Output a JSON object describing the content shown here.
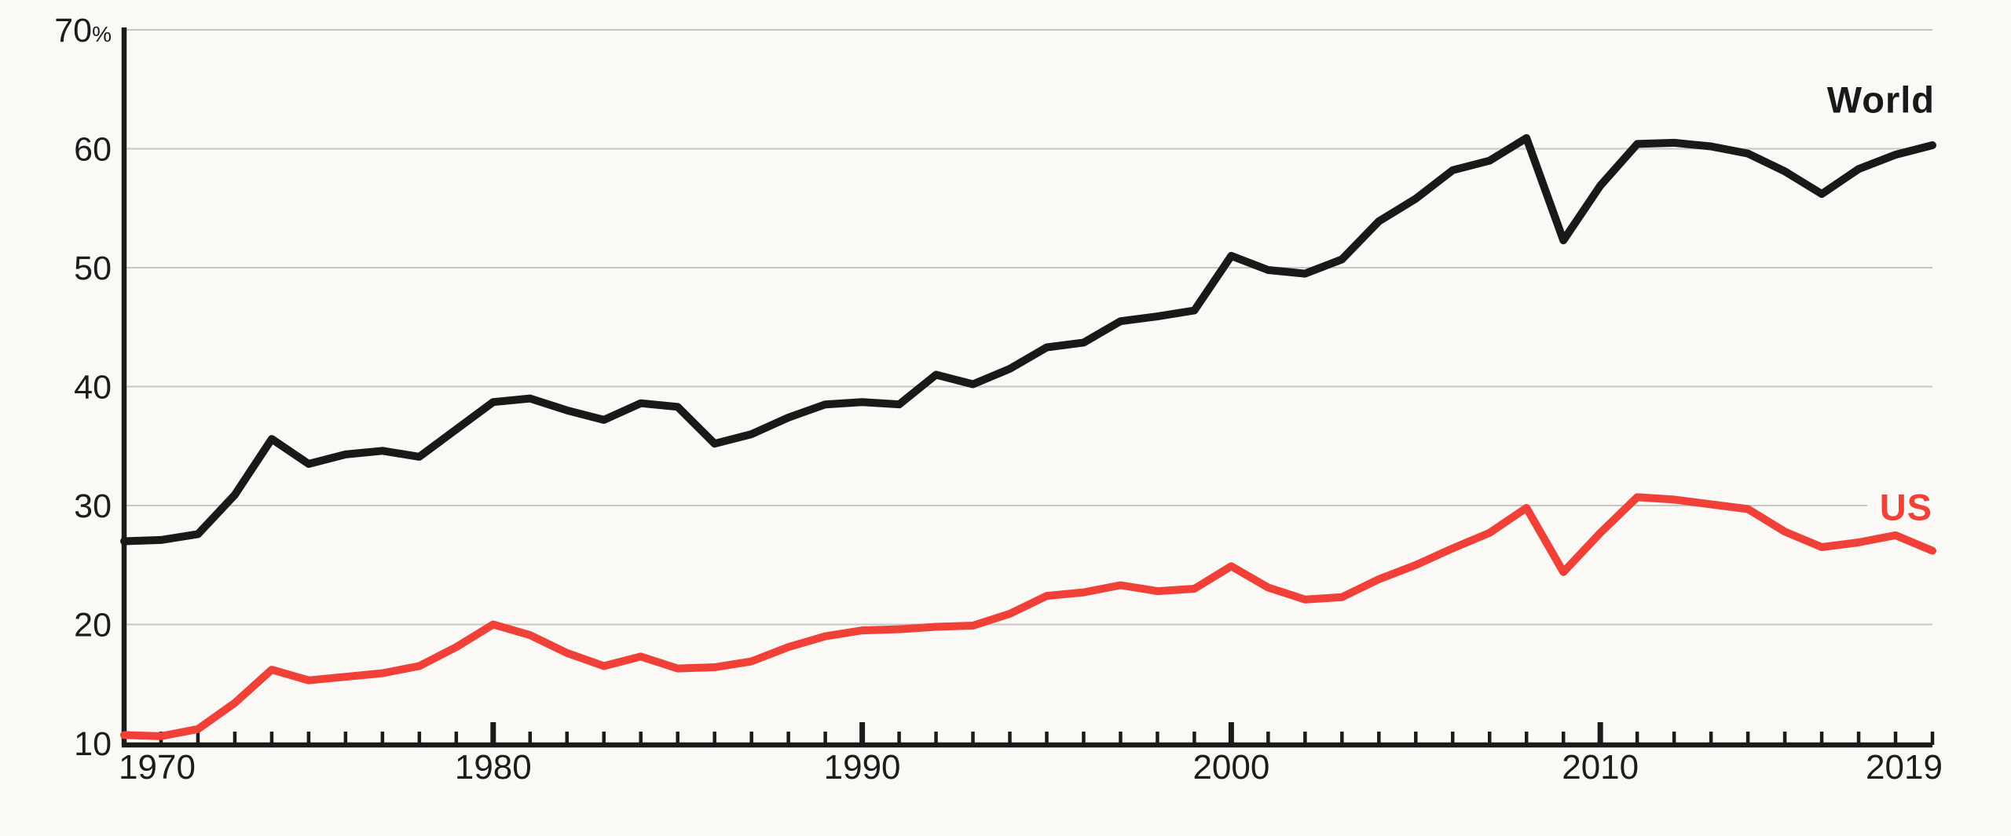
{
  "chart_data": {
    "type": "line",
    "title": "",
    "xlabel": "",
    "ylabel": "",
    "unit": "%",
    "xlim": [
      1970,
      2019
    ],
    "ylim": [
      10,
      70
    ],
    "grid": "horizontal",
    "legend_position": "end-of-line-labels",
    "x": [
      1970,
      1971,
      1972,
      1973,
      1974,
      1975,
      1976,
      1977,
      1978,
      1979,
      1980,
      1981,
      1982,
      1983,
      1984,
      1985,
      1986,
      1987,
      1988,
      1989,
      1990,
      1991,
      1992,
      1993,
      1994,
      1995,
      1996,
      1997,
      1998,
      1999,
      2000,
      2001,
      2002,
      2003,
      2004,
      2005,
      2006,
      2007,
      2008,
      2009,
      2010,
      2011,
      2012,
      2013,
      2014,
      2015,
      2016,
      2017,
      2018,
      2019
    ],
    "series": [
      {
        "name": "World",
        "color": "#191919",
        "values": [
          27.0,
          27.1,
          27.6,
          30.9,
          35.6,
          33.5,
          34.3,
          34.6,
          34.1,
          36.4,
          38.7,
          39.0,
          38.0,
          37.2,
          38.6,
          38.3,
          35.2,
          36.0,
          37.4,
          38.5,
          38.7,
          38.5,
          41.0,
          40.2,
          41.5,
          43.3,
          43.7,
          45.5,
          45.9,
          46.4,
          51.0,
          49.8,
          49.5,
          50.7,
          53.9,
          55.8,
          58.2,
          59.0,
          60.9,
          52.3,
          56.9,
          60.4,
          60.5,
          60.2,
          59.6,
          58.1,
          56.2,
          58.3,
          59.5,
          60.3
        ]
      },
      {
        "name": "US",
        "color": "#f04038",
        "values": [
          10.7,
          10.6,
          11.2,
          13.4,
          16.2,
          15.3,
          15.6,
          15.9,
          16.5,
          18.1,
          20.0,
          19.1,
          17.6,
          16.5,
          17.3,
          16.3,
          16.4,
          16.9,
          18.1,
          19.0,
          19.5,
          19.6,
          19.8,
          19.9,
          20.9,
          22.4,
          22.7,
          23.3,
          22.8,
          23.0,
          24.9,
          23.1,
          22.1,
          22.3,
          23.8,
          25.0,
          26.4,
          27.7,
          29.8,
          24.4,
          27.7,
          30.7,
          30.5,
          30.1,
          29.7,
          27.8,
          26.5,
          26.9,
          27.5,
          26.2
        ]
      }
    ],
    "y_ticks": [
      {
        "value": 70,
        "label": "70",
        "suffix": "%",
        "gridline": true
      },
      {
        "value": 60,
        "label": "60",
        "suffix": "",
        "gridline": true
      },
      {
        "value": 50,
        "label": "50",
        "suffix": "",
        "gridline": true
      },
      {
        "value": 40,
        "label": "40",
        "suffix": "",
        "gridline": true
      },
      {
        "value": 30,
        "label": "30",
        "suffix": "",
        "gridline": true
      },
      {
        "value": 20,
        "label": "20",
        "suffix": "",
        "gridline": true
      },
      {
        "value": 10,
        "label": "10",
        "suffix": "",
        "gridline": false
      }
    ],
    "x_tick_labels": [
      {
        "year": 1970,
        "label": "1970"
      },
      {
        "year": 1980,
        "label": "1980"
      },
      {
        "year": 1990,
        "label": "1990"
      },
      {
        "year": 2000,
        "label": "2000"
      },
      {
        "year": 2010,
        "label": "2010"
      },
      {
        "year": 2019,
        "label": "2019"
      }
    ],
    "x_major_ticks": [
      1980,
      1990,
      2000,
      2010
    ]
  },
  "colors": {
    "background": "#fbf9f6",
    "axis": "#1b1b1b",
    "grid": "#c9c6c2",
    "tick_label": "#1c1c1c"
  }
}
